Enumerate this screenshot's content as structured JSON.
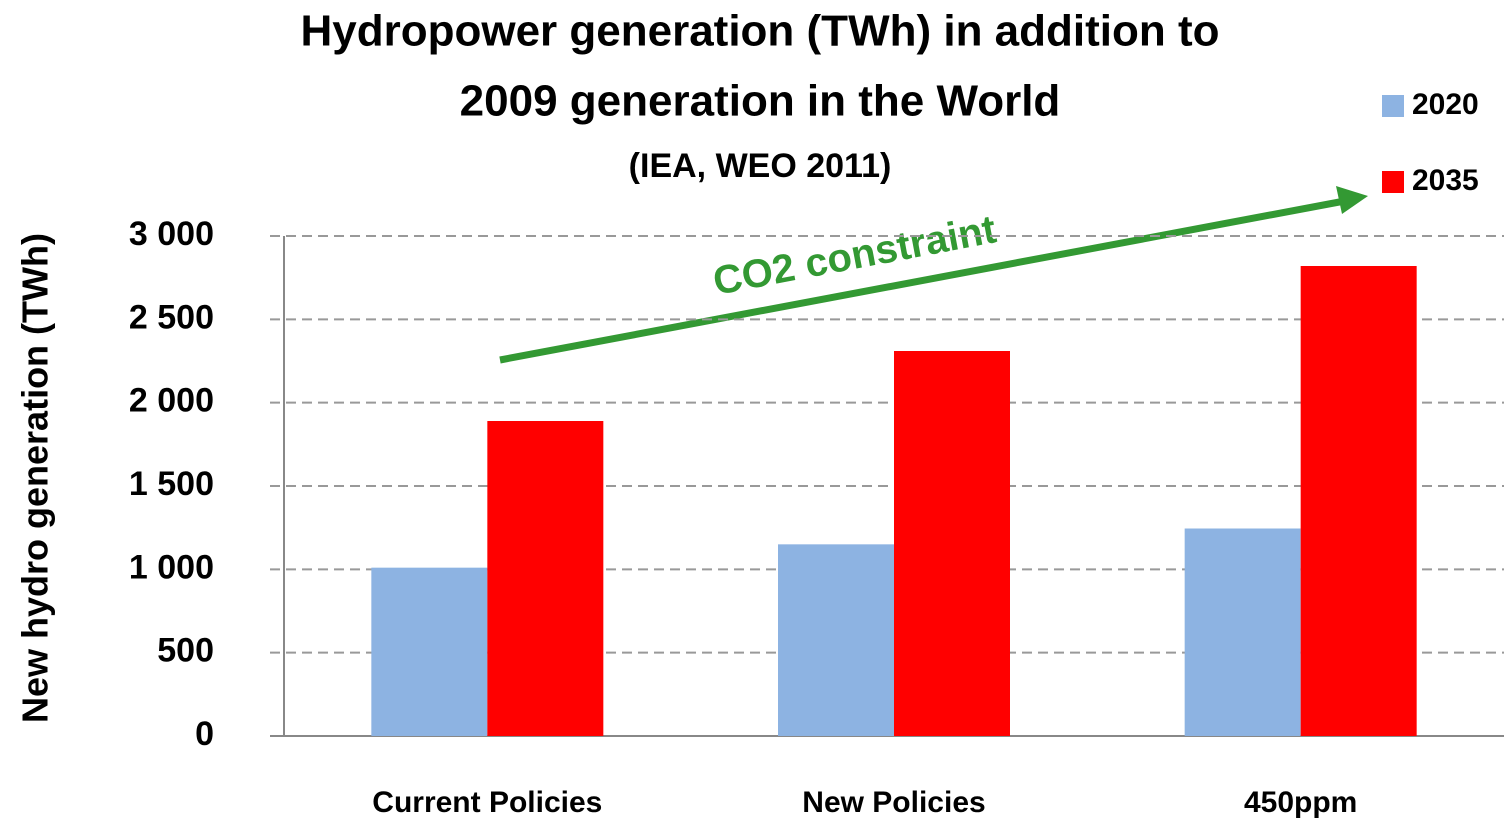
{
  "chart_data": {
    "type": "bar",
    "title": [
      "Hydropower generation (TWh) in addition to",
      "2009 generation  in the World"
    ],
    "subtitle": "(IEA, WEO 2011)",
    "y_label": "New hydro generation (TWh)",
    "annotation": "CO2 constraint",
    "categories": [
      "Current Policies",
      "New Policies",
      "450ppm"
    ],
    "series": [
      {
        "name": "2020",
        "color": "#8db3e2",
        "values": [
          1010,
          1150,
          1245
        ]
      },
      {
        "name": "2035",
        "color": "#ff0000",
        "values": [
          1890,
          2310,
          2820
        ]
      }
    ],
    "ylim": [
      0,
      3000
    ],
    "yticks": [
      0,
      500,
      {
        "value": 1000,
        "label": "1 000"
      },
      {
        "value": 1500,
        "label": "1 500"
      },
      {
        "value": 2000,
        "label": "2 000"
      },
      {
        "value": 2500,
        "label": "2 500"
      },
      {
        "value": 3000,
        "label": "3 000"
      }
    ],
    "grid": true,
    "legend": "top-right"
  }
}
